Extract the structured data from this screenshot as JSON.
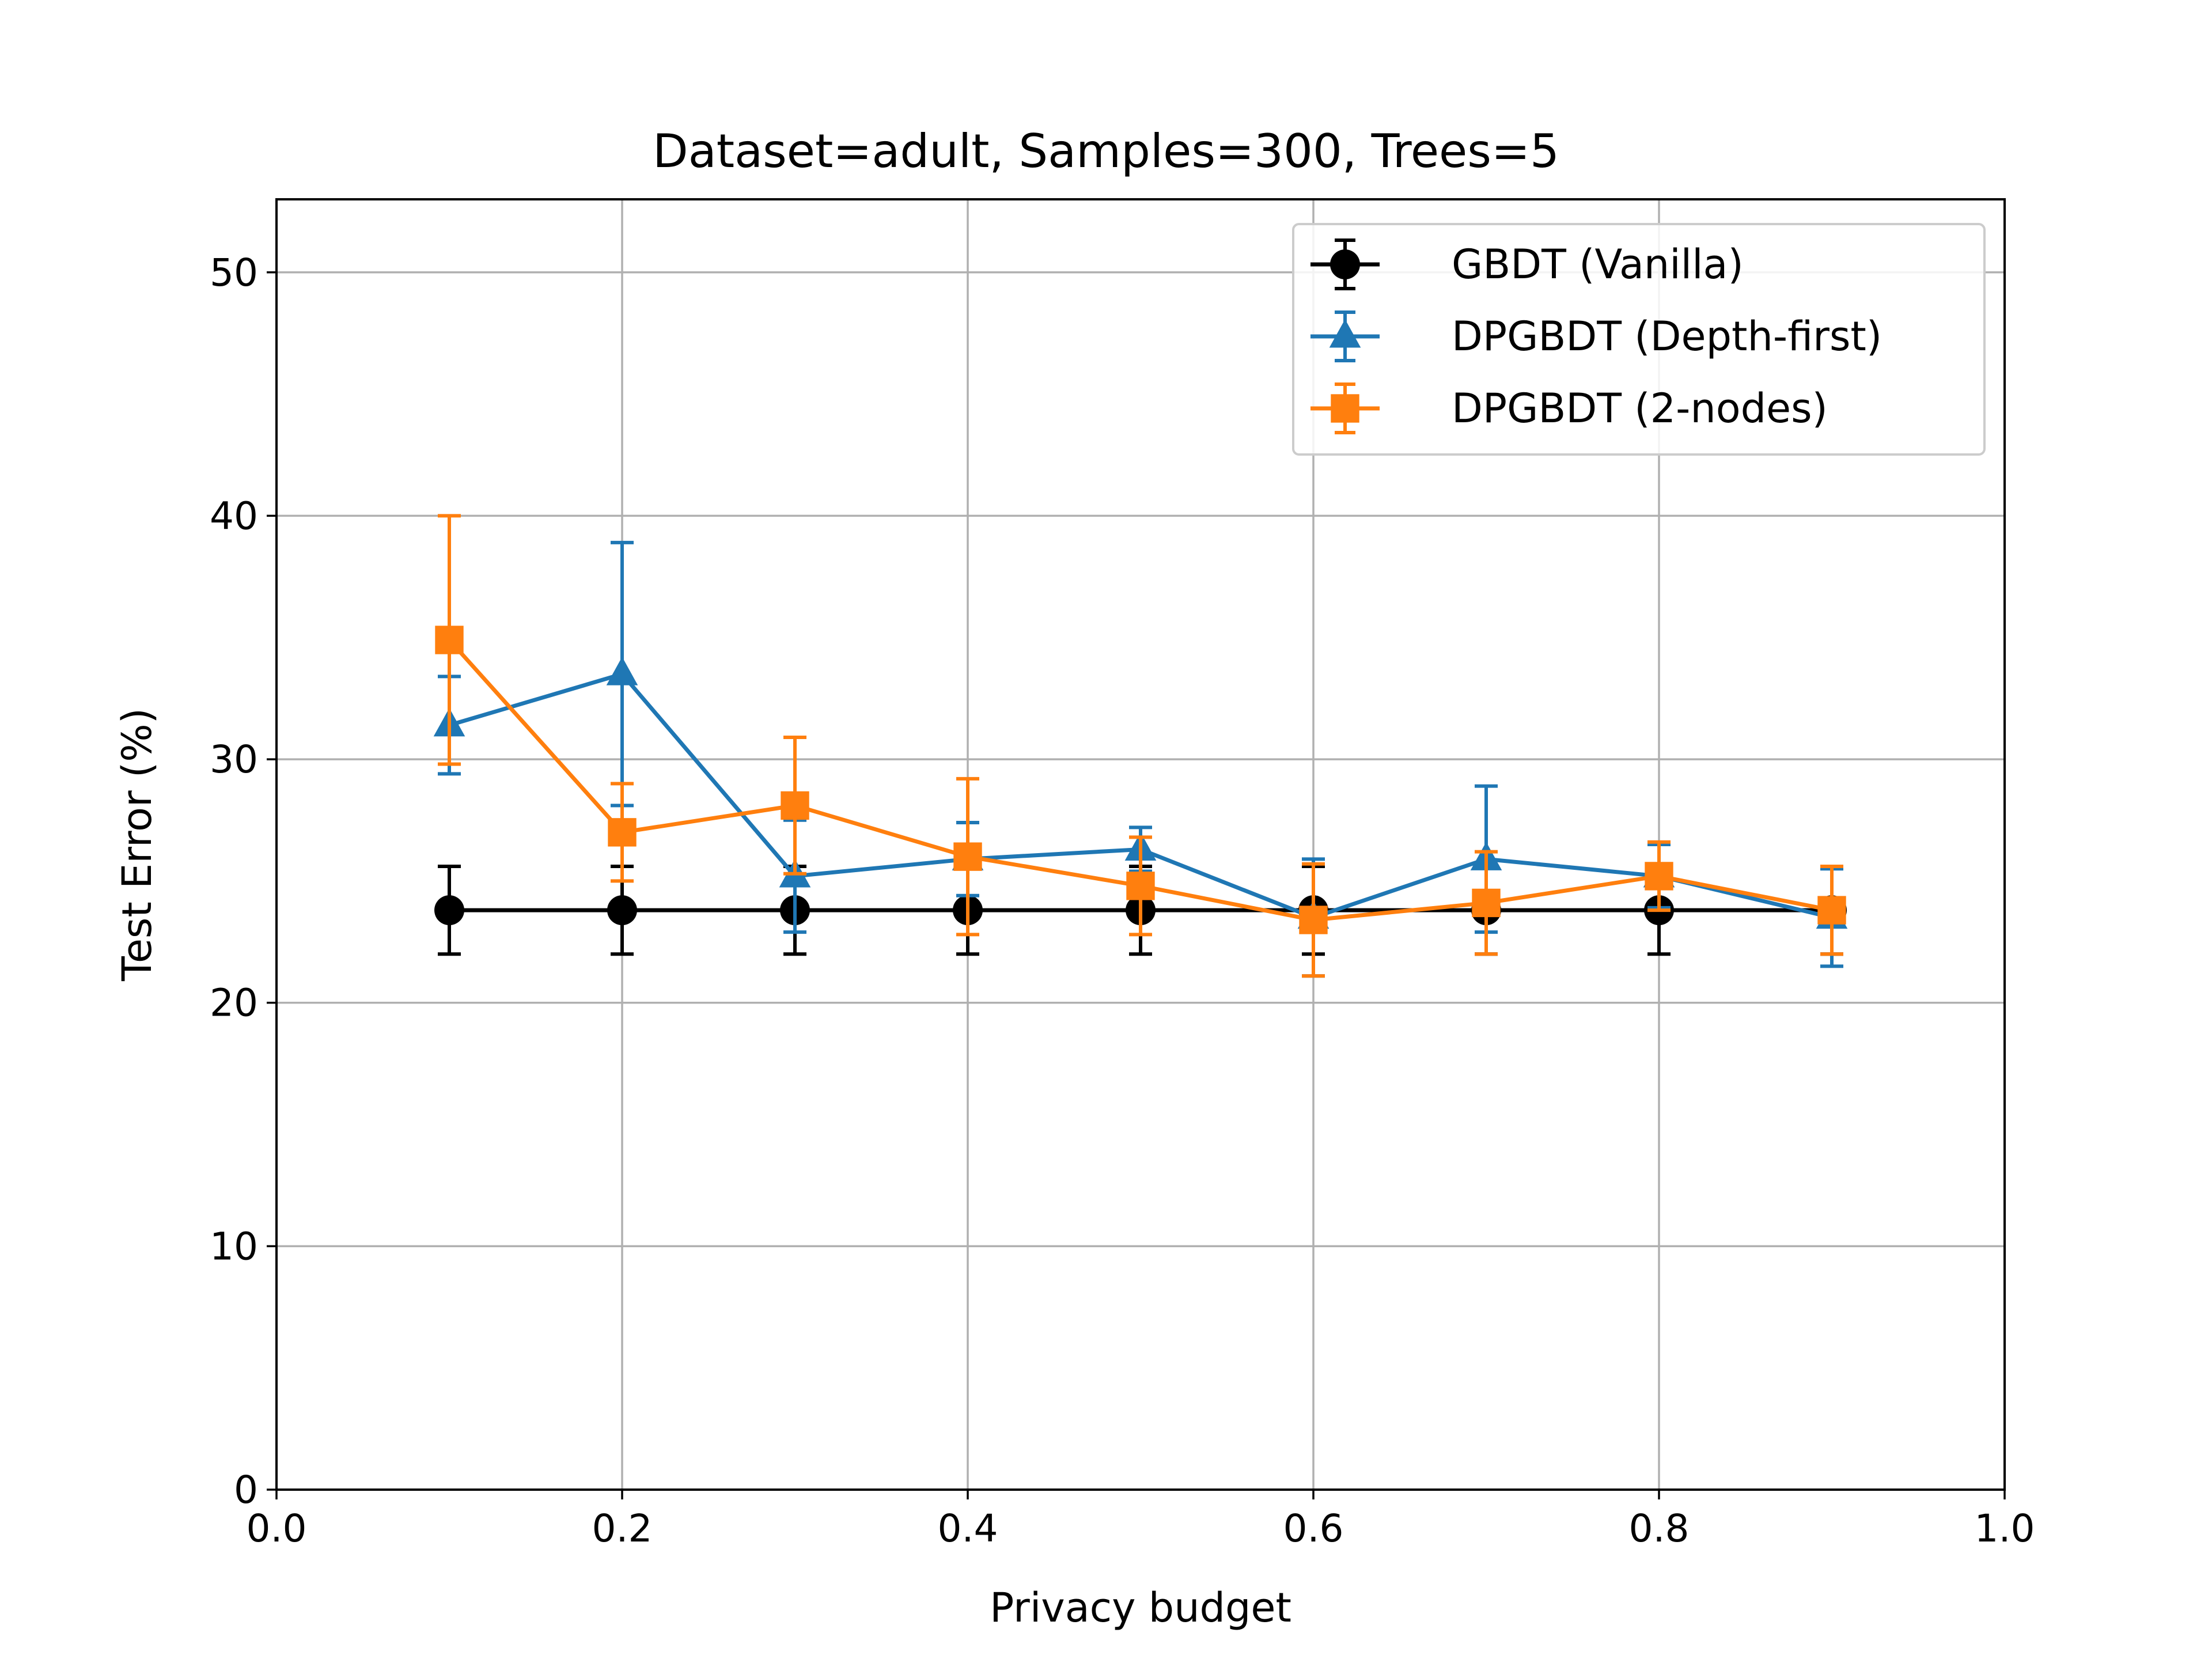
{
  "chart_data": {
    "type": "line",
    "title": "Dataset=adult, Samples=300, Trees=5",
    "xlabel": "Privacy budget",
    "ylabel": "Test Error (%)",
    "xlim": [
      0.0,
      1.0
    ],
    "ylim": [
      0,
      53
    ],
    "xticks": [
      0.0,
      0.2,
      0.4,
      0.6,
      0.8,
      1.0
    ],
    "xtick_labels": [
      "0.0",
      "0.2",
      "0.4",
      "0.6",
      "0.8",
      "1.0"
    ],
    "yticks": [
      0,
      10,
      20,
      30,
      40,
      50
    ],
    "ytick_labels": [
      "0",
      "10",
      "20",
      "30",
      "40",
      "50"
    ],
    "grid": true,
    "legend_position": "top-right",
    "series": [
      {
        "name": "GBDT (Vanilla)",
        "color": "#000000",
        "marker": "circle",
        "x": [
          0.1,
          0.2,
          0.3,
          0.4,
          0.5,
          0.6,
          0.7,
          0.8,
          0.9
        ],
        "y": [
          23.8,
          23.8,
          23.8,
          23.8,
          23.8,
          23.8,
          23.8,
          23.8,
          23.8
        ],
        "err": [
          1.8,
          1.8,
          1.8,
          1.8,
          1.8,
          1.8,
          1.8,
          1.8,
          1.8
        ]
      },
      {
        "name": "DPGBDT (Depth-first)",
        "color": "#1f77b4",
        "marker": "triangle",
        "x": [
          0.1,
          0.2,
          0.3,
          0.4,
          0.5,
          0.6,
          0.7,
          0.8,
          0.9
        ],
        "y": [
          31.4,
          33.5,
          25.2,
          25.9,
          26.3,
          23.5,
          25.9,
          25.2,
          23.5
        ],
        "err": [
          2.0,
          5.4,
          2.3,
          1.5,
          0.9,
          2.4,
          3.0,
          1.3,
          2.0
        ]
      },
      {
        "name": "DPGBDT (2-nodes)",
        "color": "#ff7f0e",
        "marker": "square",
        "x": [
          0.1,
          0.2,
          0.3,
          0.4,
          0.5,
          0.6,
          0.7,
          0.8,
          0.9
        ],
        "y": [
          34.9,
          27.0,
          28.1,
          26.0,
          24.8,
          23.4,
          24.1,
          25.2,
          23.8
        ],
        "err": [
          5.1,
          2.0,
          2.8,
          3.2,
          2.0,
          2.3,
          2.1,
          1.4,
          1.8
        ]
      }
    ]
  }
}
